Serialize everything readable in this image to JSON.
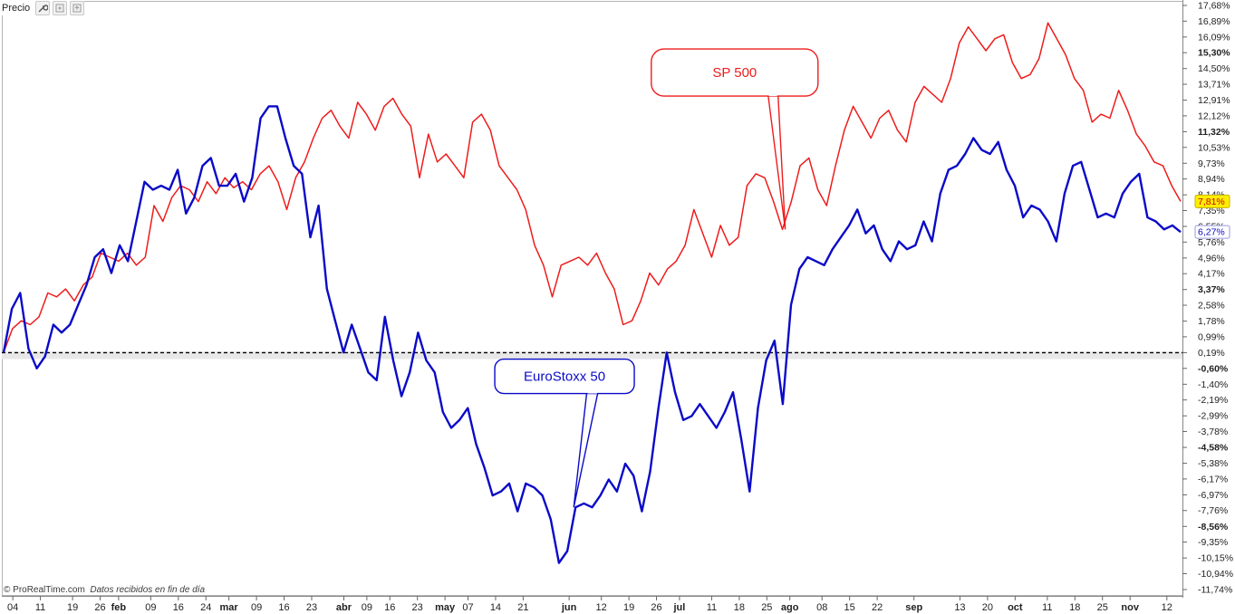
{
  "toolbar": {
    "label": "Precio",
    "icons": [
      "wrench-icon",
      "add-panel-icon",
      "export-icon"
    ]
  },
  "footer": {
    "brand": "© ProRealTime.com",
    "note": "Datos recibidos en fin de día"
  },
  "colors": {
    "sp500": "#ee1c1c",
    "eurostoxx": "#0a0ac8",
    "baseline": "#000000",
    "background": "#ffffff",
    "sp500_tag_bg": "#ffee00"
  },
  "chart_data": {
    "type": "line",
    "title": "",
    "xlabel": "",
    "ylabel": "",
    "ylim": [
      -11.74,
      17.68
    ],
    "xlim": [
      0,
      128
    ],
    "grid": false,
    "baseline": 0.19,
    "y_tick_labels": [
      "17,68%",
      "16,89%",
      "16,09%",
      "15,30%",
      "14,50%",
      "13,71%",
      "12,91%",
      "12,12%",
      "11,32%",
      "10,53%",
      "9,73%",
      "8,94%",
      "8,14%",
      "7,35%",
      "6,55%",
      "5,76%",
      "4,96%",
      "4,17%",
      "3,37%",
      "2,58%",
      "1,78%",
      "0,99%",
      "0,19%",
      "-0,60%",
      "-1,40%",
      "-2,19%",
      "-2,99%",
      "-3,78%",
      "-4,58%",
      "-5,38%",
      "-6,17%",
      "-6,97%",
      "-7,76%",
      "-8,56%",
      "-9,35%",
      "-10,15%",
      "-10,94%",
      "-11,74%"
    ],
    "y_tick_values": [
      17.68,
      16.89,
      16.09,
      15.3,
      14.5,
      13.71,
      12.91,
      12.12,
      11.32,
      10.53,
      9.73,
      8.94,
      8.14,
      7.35,
      6.55,
      5.76,
      4.96,
      4.17,
      3.37,
      2.58,
      1.78,
      0.99,
      0.19,
      -0.6,
      -1.4,
      -2.19,
      -2.99,
      -3.78,
      -4.58,
      -5.38,
      -6.17,
      -6.97,
      -7.76,
      -8.56,
      -9.35,
      -10.15,
      -10.94,
      -11.74
    ],
    "y_bold_labels": [
      "15,30%",
      "11,32%",
      "3,37%",
      "-0,60%",
      "-4,58%",
      "-8,56%"
    ],
    "x_tick_labels": [
      {
        "t": 1,
        "label": "04",
        "bold": false
      },
      {
        "t": 4,
        "label": "11",
        "bold": false
      },
      {
        "t": 7.5,
        "label": "19",
        "bold": false
      },
      {
        "t": 10.5,
        "label": "26",
        "bold": false
      },
      {
        "t": 12.5,
        "label": "feb",
        "bold": true
      },
      {
        "t": 16,
        "label": "09",
        "bold": false
      },
      {
        "t": 19,
        "label": "16",
        "bold": false
      },
      {
        "t": 22,
        "label": "24",
        "bold": false
      },
      {
        "t": 24.5,
        "label": "mar",
        "bold": true
      },
      {
        "t": 27.5,
        "label": "09",
        "bold": false
      },
      {
        "t": 30.5,
        "label": "16",
        "bold": false
      },
      {
        "t": 33.5,
        "label": "23",
        "bold": false
      },
      {
        "t": 37,
        "label": "abr",
        "bold": true
      },
      {
        "t": 39.5,
        "label": "09",
        "bold": false
      },
      {
        "t": 42,
        "label": "16",
        "bold": false
      },
      {
        "t": 45,
        "label": "23",
        "bold": false
      },
      {
        "t": 48,
        "label": "may",
        "bold": true
      },
      {
        "t": 50.5,
        "label": "07",
        "bold": false
      },
      {
        "t": 53.5,
        "label": "14",
        "bold": false
      },
      {
        "t": 56.5,
        "label": "21",
        "bold": false
      },
      {
        "t": 61.5,
        "label": "jun",
        "bold": true
      },
      {
        "t": 65,
        "label": "12",
        "bold": false
      },
      {
        "t": 68,
        "label": "19",
        "bold": false
      },
      {
        "t": 71,
        "label": "26",
        "bold": false
      },
      {
        "t": 73.5,
        "label": "jul",
        "bold": true
      },
      {
        "t": 77,
        "label": "11",
        "bold": false
      },
      {
        "t": 80,
        "label": "18",
        "bold": false
      },
      {
        "t": 83,
        "label": "25",
        "bold": false
      },
      {
        "t": 85.5,
        "label": "ago",
        "bold": true
      },
      {
        "t": 89,
        "label": "08",
        "bold": false
      },
      {
        "t": 92,
        "label": "15",
        "bold": false
      },
      {
        "t": 95,
        "label": "22",
        "bold": false
      },
      {
        "t": 99,
        "label": "sep",
        "bold": true
      },
      {
        "t": 104,
        "label": "13",
        "bold": false
      },
      {
        "t": 107,
        "label": "20",
        "bold": false
      },
      {
        "t": 110,
        "label": "oct",
        "bold": true
      },
      {
        "t": 113.5,
        "label": "11",
        "bold": false
      },
      {
        "t": 116.5,
        "label": "18",
        "bold": false
      },
      {
        "t": 119.5,
        "label": "25",
        "bold": false
      },
      {
        "t": 122.5,
        "label": "nov",
        "bold": true
      },
      {
        "t": 126.5,
        "label": "12",
        "bold": false
      }
    ],
    "series": [
      {
        "name": "SP 500",
        "color": "#ee1c1c",
        "last_label": "7,81%",
        "values": [
          0.2,
          1.4,
          1.8,
          1.6,
          2.0,
          3.2,
          3.0,
          3.4,
          2.8,
          3.6,
          4.0,
          5.2,
          5.0,
          4.8,
          5.2,
          4.6,
          5.0,
          7.6,
          6.8,
          8.0,
          8.6,
          8.4,
          7.8,
          8.8,
          8.2,
          9.0,
          8.5,
          8.8,
          8.4,
          9.2,
          9.6,
          8.8,
          7.4,
          9.0,
          9.8,
          11.0,
          12.0,
          12.4,
          11.6,
          11.0,
          12.8,
          12.2,
          11.4,
          12.6,
          13.0,
          12.2,
          11.6,
          9.0,
          11.2,
          9.8,
          10.2,
          9.6,
          9.0,
          11.8,
          12.2,
          11.4,
          9.6,
          9.0,
          8.4,
          7.4,
          5.6,
          4.6,
          3.0,
          4.6,
          4.8,
          5.0,
          4.6,
          5.2,
          4.2,
          3.4,
          1.6,
          1.8,
          2.8,
          4.2,
          3.6,
          4.4,
          4.8,
          5.6,
          7.4,
          6.2,
          5.0,
          6.6,
          5.6,
          6.0,
          8.6,
          9.2,
          9.0,
          7.8,
          6.4,
          7.8,
          9.6,
          10.0,
          8.4,
          7.6,
          9.6,
          11.4,
          12.6,
          11.8,
          11.0,
          12.0,
          12.4,
          11.4,
          10.8,
          12.8,
          13.6,
          13.2,
          12.8,
          14.0,
          15.8,
          16.6,
          16.0,
          15.4,
          16.0,
          16.2,
          14.8,
          14.0,
          14.2,
          15.0,
          16.8,
          16.0,
          15.2,
          14.0,
          13.4,
          11.8,
          12.2,
          12.0,
          13.4,
          12.4,
          11.2,
          10.6,
          9.8,
          9.6,
          8.6,
          7.81
        ]
      },
      {
        "name": "EuroStoxx 50",
        "color": "#0a0ac8",
        "last_label": "6,27%",
        "values": [
          0.2,
          2.4,
          3.2,
          0.4,
          -0.6,
          0.0,
          1.6,
          1.2,
          1.6,
          2.6,
          3.6,
          5.0,
          5.4,
          4.2,
          5.6,
          4.8,
          6.8,
          8.8,
          8.4,
          8.6,
          8.4,
          9.4,
          7.2,
          8.0,
          9.6,
          10.0,
          8.6,
          8.6,
          9.2,
          7.8,
          9.0,
          12.0,
          12.6,
          12.6,
          11.0,
          9.6,
          9.2,
          6.0,
          7.6,
          3.4,
          1.8,
          0.2,
          1.6,
          0.4,
          -0.8,
          -1.2,
          2.0,
          -0.2,
          -2.0,
          -0.8,
          1.2,
          -0.2,
          -0.8,
          -2.8,
          -3.6,
          -3.2,
          -2.6,
          -4.4,
          -5.6,
          -7.0,
          -6.8,
          -6.4,
          -7.8,
          -6.4,
          -6.6,
          -7.0,
          -8.2,
          -10.4,
          -9.8,
          -7.6,
          -7.4,
          -7.6,
          -7.0,
          -6.2,
          -6.8,
          -5.4,
          -6.0,
          -7.8,
          -5.8,
          -2.6,
          0.2,
          -1.8,
          -3.2,
          -3.0,
          -2.4,
          -3.0,
          -3.6,
          -2.8,
          -1.8,
          -4.2,
          -6.8,
          -2.6,
          -0.2,
          0.8,
          -2.4,
          2.6,
          4.4,
          5.0,
          4.8,
          4.6,
          5.4,
          6.0,
          6.6,
          7.4,
          6.2,
          6.6,
          5.4,
          4.8,
          5.8,
          5.4,
          5.6,
          6.8,
          5.8,
          8.2,
          9.4,
          9.6,
          10.2,
          11.0,
          10.4,
          10.2,
          10.8,
          9.4,
          8.6,
          7.0,
          7.6,
          7.4,
          6.8,
          5.8,
          8.2,
          9.6,
          9.8,
          8.4,
          7.0,
          7.2,
          7.0,
          8.2,
          8.8,
          9.2,
          7.0,
          6.8,
          6.4,
          6.6,
          6.27
        ]
      }
    ],
    "annotations": [
      {
        "text": "SP 500",
        "series": "SP 500",
        "point_x": 85,
        "box_x": 79.5,
        "box_y": 14.3,
        "color": "#ee1c1c"
      },
      {
        "text": "EuroStoxx 50",
        "series": "EuroStoxx 50",
        "point_x": 62,
        "box_x": 61.0,
        "box_y": -1.0,
        "color": "#0a0ac8"
      }
    ]
  }
}
